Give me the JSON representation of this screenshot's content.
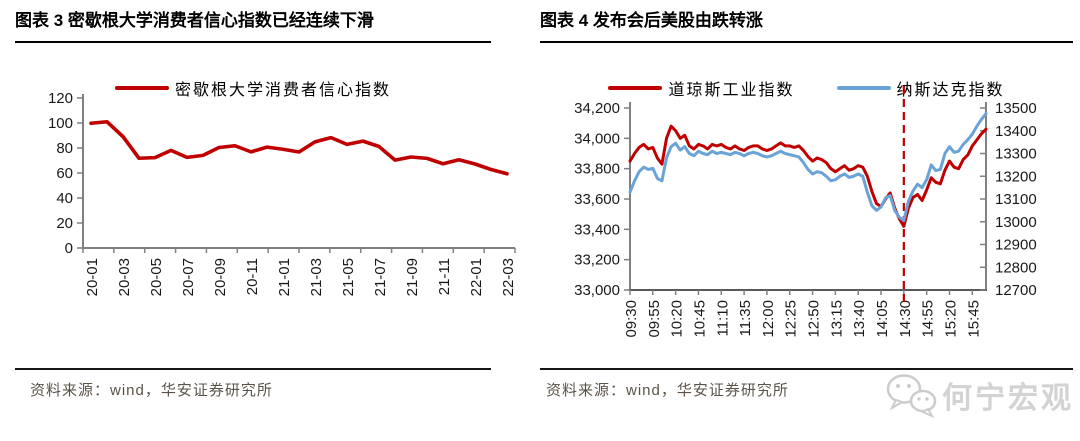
{
  "colors": {
    "red": "#c00000",
    "blue": "#6aa3d8",
    "axis": "#808080",
    "tick_label": "#1a1a1a",
    "source_text": "#5b5349",
    "watermark": "#d3d3d3"
  },
  "figures": [
    {
      "title": "图表 3 密歇根大学消费者信心指数已经连续下滑",
      "legend": [
        {
          "label": "密歇根大学消费者信心指数",
          "color": "#c00000"
        }
      ],
      "source": "资料来源：wind，华安证券研究所"
    },
    {
      "title": "图表 4 发布会后美股由跌转涨",
      "legend": [
        {
          "label": "道琼斯工业指数",
          "color": "#c00000"
        },
        {
          "label": "纳斯达克指数",
          "color": "#6aa3d8"
        }
      ],
      "source": "资料来源：wind，华安证券研究所"
    }
  ],
  "watermark": {
    "label": "何宁宏观",
    "icon": "wechat-icon"
  },
  "chart_data": [
    {
      "type": "line",
      "title": "图表 3 密歇根大学消费者信心指数已经连续下滑",
      "x": [
        "20-01",
        "20-02",
        "20-03",
        "20-04",
        "20-05",
        "20-06",
        "20-07",
        "20-08",
        "20-09",
        "20-10",
        "20-11",
        "20-12",
        "21-01",
        "21-02",
        "21-03",
        "21-04",
        "21-05",
        "21-06",
        "21-07",
        "21-08",
        "21-09",
        "21-10",
        "21-11",
        "21-12",
        "22-01",
        "22-02",
        "22-03"
      ],
      "x_tick_labels": [
        "20-01",
        "20-03",
        "20-05",
        "20-07",
        "20-09",
        "20-11",
        "21-01",
        "21-03",
        "21-05",
        "21-07",
        "21-09",
        "21-11",
        "22-01",
        "22-03"
      ],
      "y_ticks": [
        0,
        20,
        40,
        60,
        80,
        100,
        120
      ],
      "ylim": [
        0,
        120
      ],
      "grid": false,
      "legend_position": "top",
      "series": [
        {
          "name": "密歇根大学消费者信心指数",
          "color": "#c00000",
          "values": [
            99.8,
            101.0,
            89.1,
            71.8,
            72.3,
            78.1,
            72.5,
            74.1,
            80.4,
            81.8,
            76.9,
            80.7,
            79.0,
            76.8,
            84.9,
            88.3,
            82.9,
            85.5,
            81.2,
            70.3,
            72.8,
            71.7,
            67.4,
            70.6,
            67.2,
            62.8,
            59.4
          ]
        }
      ]
    },
    {
      "type": "line",
      "title": "图表 4 发布会后美股由跌转涨",
      "x_tick_labels": [
        "09:30",
        "09:55",
        "10:20",
        "10:45",
        "11:10",
        "11:35",
        "12:00",
        "12:25",
        "12:50",
        "13:15",
        "13:40",
        "14:05",
        "14:30",
        "14:55",
        "15:20",
        "15:45"
      ],
      "x_range_minutes": [
        0,
        390
      ],
      "session_start": "09:30",
      "tick_interval_minutes": 25,
      "step_minutes": 5,
      "grid": false,
      "legend_position": "top",
      "left_axis": {
        "min": 33000,
        "max": 34200,
        "step": 200,
        "ticks": [
          "33,000",
          "33,200",
          "33,400",
          "33,600",
          "33,800",
          "34,000",
          "34,200"
        ]
      },
      "right_axis": {
        "min": 12700,
        "max": 13500,
        "step": 100,
        "ticks": [
          "12700",
          "12800",
          "12900",
          "13000",
          "13100",
          "13200",
          "13300",
          "13400",
          "13500"
        ]
      },
      "annotation": {
        "type": "vline-dashed",
        "at": "14:30",
        "color": "#c00000"
      },
      "series": [
        {
          "name": "道琼斯工业指数",
          "axis": "left",
          "color": "#c00000",
          "values": [
            33850,
            33900,
            33940,
            33960,
            33930,
            33940,
            33870,
            33830,
            34000,
            34080,
            34050,
            34000,
            34020,
            33950,
            33930,
            33960,
            33950,
            33930,
            33960,
            33950,
            33960,
            33940,
            33930,
            33950,
            33930,
            33920,
            33940,
            33950,
            33950,
            33930,
            33920,
            33930,
            33950,
            33970,
            33950,
            33950,
            33940,
            33950,
            33920,
            33880,
            33850,
            33870,
            33860,
            33840,
            33800,
            33780,
            33800,
            33820,
            33790,
            33800,
            33820,
            33810,
            33750,
            33650,
            33570,
            33550,
            33600,
            33640,
            33540,
            33470,
            33420,
            33540,
            33610,
            33630,
            33590,
            33660,
            33740,
            33710,
            33700,
            33790,
            33850,
            33810,
            33800,
            33860,
            33890,
            33950,
            33990,
            34030,
            34060
          ]
        },
        {
          "name": "纳斯达克指数",
          "axis": "right",
          "color": "#6aa3d8",
          "values": [
            13130,
            13180,
            13220,
            13240,
            13230,
            13235,
            13190,
            13180,
            13280,
            13330,
            13345,
            13315,
            13330,
            13300,
            13290,
            13310,
            13300,
            13295,
            13310,
            13300,
            13305,
            13300,
            13295,
            13305,
            13300,
            13290,
            13300,
            13305,
            13300,
            13290,
            13285,
            13290,
            13300,
            13310,
            13300,
            13295,
            13290,
            13285,
            13260,
            13230,
            13210,
            13220,
            13215,
            13200,
            13180,
            13185,
            13200,
            13210,
            13195,
            13200,
            13210,
            13200,
            13130,
            13070,
            13050,
            13065,
            13105,
            13115,
            13050,
            13020,
            13005,
            13090,
            13135,
            13165,
            13150,
            13185,
            13250,
            13225,
            13230,
            13300,
            13330,
            13305,
            13310,
            13340,
            13360,
            13385,
            13420,
            13450,
            13475
          ]
        }
      ]
    }
  ]
}
